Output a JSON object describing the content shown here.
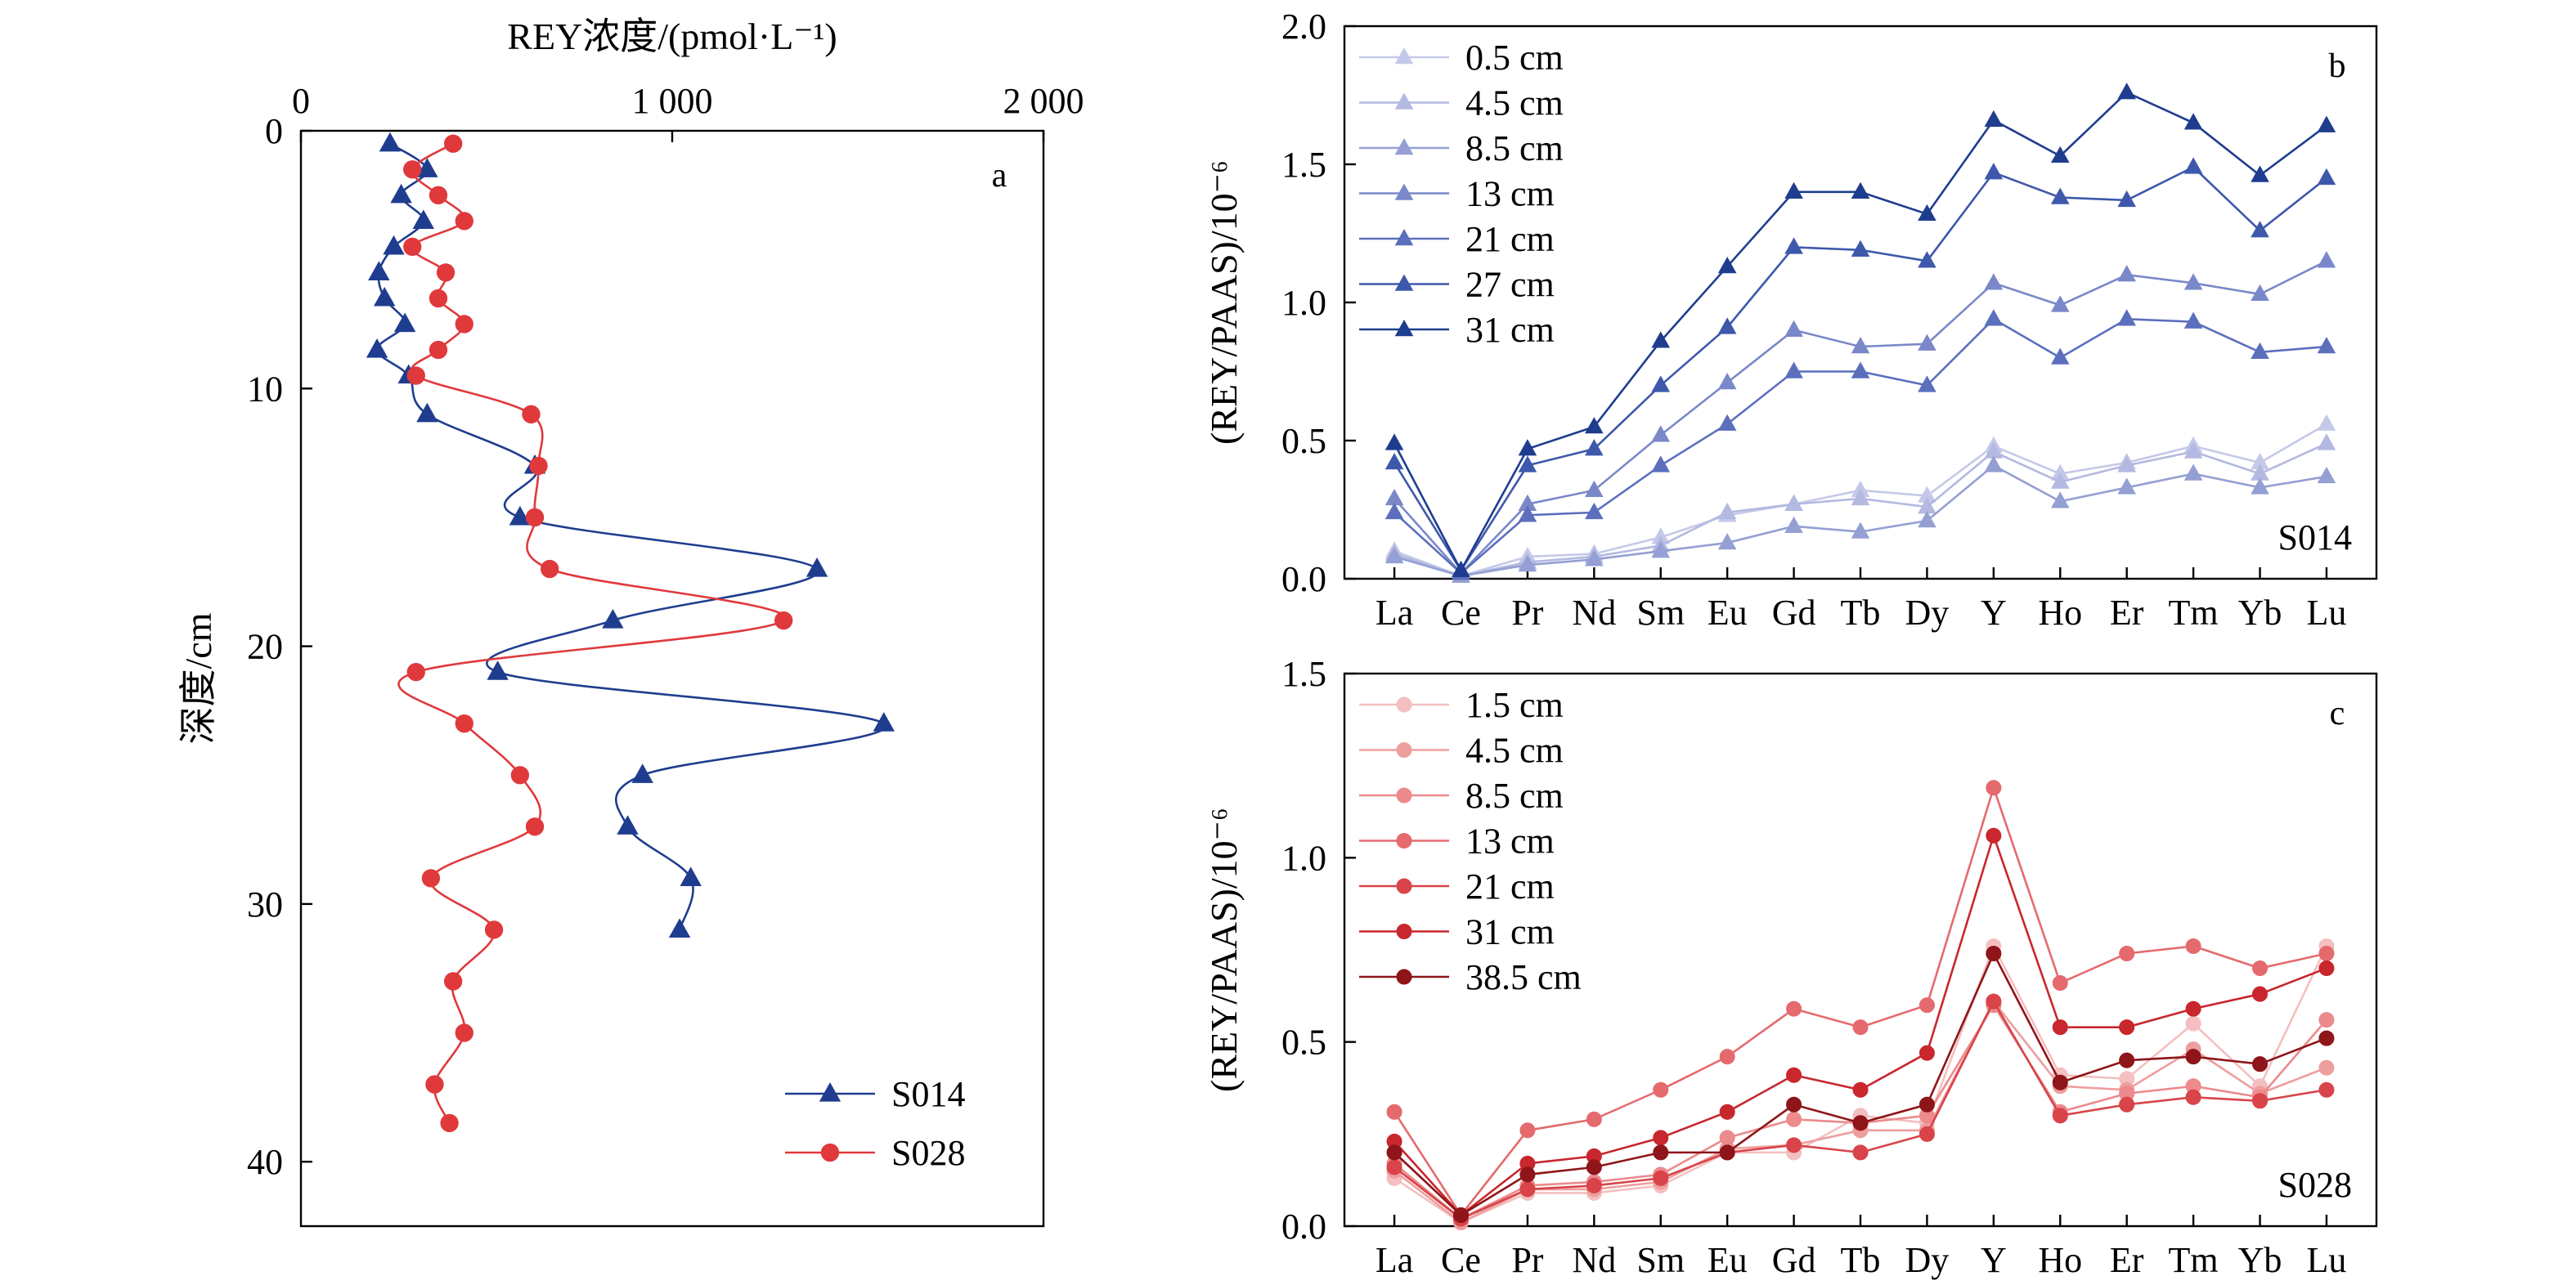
{
  "chart_data": [
    {
      "id": "a",
      "type": "line",
      "panel_label": "a",
      "xlabel": "REY浓度/(pmol·L⁻¹)",
      "ylabel": "深度/cm",
      "xlim": [
        0,
        2000
      ],
      "ylim": [
        0,
        42.5
      ],
      "y_inverted": true,
      "x_axis_position": "top",
      "xticks": [
        0,
        1000,
        2000
      ],
      "xtick_labels": [
        "0",
        "1 000",
        "2 000"
      ],
      "yticks": [
        0,
        10,
        20,
        30,
        40
      ],
      "ytick_labels": [
        "0",
        "10",
        "20",
        "30",
        "40"
      ],
      "legend_position": "bottom-right",
      "series": [
        {
          "name": "S014",
          "color": "#1f3d8f",
          "marker": "triangle",
          "depth": [
            0.5,
            1.5,
            2.5,
            3.5,
            4.5,
            5.5,
            6.5,
            7.5,
            8.5,
            9.5,
            11,
            13,
            15,
            17,
            19,
            21,
            23,
            25,
            27,
            29,
            31
          ],
          "conc": [
            240,
            340,
            270,
            330,
            250,
            210,
            225,
            280,
            205,
            290,
            340,
            630,
            590,
            1390,
            840,
            530,
            1570,
            920,
            880,
            1050,
            1020
          ]
        },
        {
          "name": "S028",
          "color": "#e0393c",
          "marker": "circle",
          "depth": [
            0.5,
            1.5,
            2.5,
            3.5,
            4.5,
            5.5,
            6.5,
            7.5,
            8.5,
            9.5,
            11,
            13,
            15,
            17,
            19,
            21,
            23,
            25,
            27,
            29,
            31,
            33,
            35,
            37,
            38.5
          ],
          "conc": [
            410,
            300,
            370,
            440,
            300,
            390,
            370,
            440,
            370,
            310,
            620,
            640,
            630,
            670,
            1300,
            310,
            440,
            590,
            630,
            350,
            520,
            410,
            440,
            360,
            400
          ]
        }
      ]
    },
    {
      "id": "b",
      "type": "line",
      "panel_label": "b",
      "sample_label": "S014",
      "ylabel": "(REY/PAAS)/10⁻⁶",
      "ylim": [
        0,
        2.0
      ],
      "yticks": [
        0,
        0.5,
        1.0,
        1.5,
        2.0
      ],
      "ytick_labels": [
        "0.0",
        "0.5",
        "1.0",
        "1.5",
        "2.0"
      ],
      "legend_position": "top-left",
      "categories": [
        "La",
        "Ce",
        "Pr",
        "Nd",
        "Sm",
        "Eu",
        "Gd",
        "Tb",
        "Dy",
        "Y",
        "Ho",
        "Er",
        "Tm",
        "Yb",
        "Lu"
      ],
      "series": [
        {
          "name": "0.5 cm",
          "color": "#c5c9e9",
          "marker": "triangle",
          "values": [
            0.1,
            0.01,
            0.08,
            0.09,
            0.15,
            0.23,
            0.27,
            0.32,
            0.3,
            0.48,
            0.38,
            0.42,
            0.48,
            0.42,
            0.56
          ]
        },
        {
          "name": "4.5 cm",
          "color": "#b3b9e1",
          "marker": "triangle",
          "values": [
            0.09,
            0.01,
            0.06,
            0.08,
            0.12,
            0.24,
            0.27,
            0.29,
            0.26,
            0.46,
            0.35,
            0.41,
            0.46,
            0.38,
            0.49
          ]
        },
        {
          "name": "8.5 cm",
          "color": "#949fd3",
          "marker": "triangle",
          "values": [
            0.08,
            0.01,
            0.05,
            0.07,
            0.1,
            0.13,
            0.19,
            0.17,
            0.21,
            0.41,
            0.28,
            0.33,
            0.38,
            0.33,
            0.37
          ]
        },
        {
          "name": "13 cm",
          "color": "#7a88c9",
          "marker": "triangle",
          "values": [
            0.29,
            0.02,
            0.27,
            0.32,
            0.52,
            0.71,
            0.9,
            0.84,
            0.85,
            1.07,
            0.99,
            1.1,
            1.07,
            1.03,
            1.15
          ]
        },
        {
          "name": "21 cm",
          "color": "#5b6fbd",
          "marker": "triangle",
          "values": [
            0.24,
            0.02,
            0.23,
            0.24,
            0.41,
            0.56,
            0.75,
            0.75,
            0.7,
            0.94,
            0.8,
            0.94,
            0.93,
            0.82,
            0.84
          ]
        },
        {
          "name": "27 cm",
          "color": "#3e58ab",
          "marker": "triangle",
          "values": [
            0.42,
            0.03,
            0.41,
            0.47,
            0.7,
            0.91,
            1.2,
            1.19,
            1.15,
            1.47,
            1.38,
            1.37,
            1.49,
            1.26,
            1.45
          ]
        },
        {
          "name": "31 cm",
          "color": "#1f3d8f",
          "marker": "triangle",
          "values": [
            0.49,
            0.03,
            0.47,
            0.55,
            0.86,
            1.13,
            1.4,
            1.4,
            1.32,
            1.66,
            1.53,
            1.76,
            1.65,
            1.46,
            1.64
          ]
        }
      ]
    },
    {
      "id": "c",
      "type": "line",
      "panel_label": "c",
      "sample_label": "S028",
      "ylabel": "(REY/PAAS)/10⁻⁶",
      "ylim": [
        0,
        1.5
      ],
      "yticks": [
        0,
        0.5,
        1.0,
        1.5
      ],
      "ytick_labels": [
        "0.0",
        "0.5",
        "1.0",
        "1.5"
      ],
      "legend_position": "top-left",
      "categories": [
        "La",
        "Ce",
        "Pr",
        "Nd",
        "Sm",
        "Eu",
        "Gd",
        "Tb",
        "Dy",
        "Y",
        "Ho",
        "Er",
        "Tm",
        "Yb",
        "Lu"
      ],
      "series": [
        {
          "name": "1.5 cm",
          "color": "#f4bfc0",
          "marker": "circle",
          "values": [
            0.13,
            0.01,
            0.09,
            0.09,
            0.11,
            0.2,
            0.2,
            0.3,
            0.28,
            0.76,
            0.41,
            0.4,
            0.55,
            0.38,
            0.76
          ]
        },
        {
          "name": "4.5 cm",
          "color": "#ee9e9f",
          "marker": "circle",
          "values": [
            0.15,
            0.01,
            0.1,
            0.1,
            0.12,
            0.21,
            0.22,
            0.26,
            0.26,
            0.61,
            0.38,
            0.37,
            0.48,
            0.36,
            0.43
          ]
        },
        {
          "name": "8.5 cm",
          "color": "#ec8a8c",
          "marker": "circle",
          "values": [
            0.17,
            0.02,
            0.11,
            0.12,
            0.14,
            0.24,
            0.29,
            0.28,
            0.3,
            0.6,
            0.31,
            0.36,
            0.38,
            0.35,
            0.56
          ]
        },
        {
          "name": "13 cm",
          "color": "#e56a6e",
          "marker": "circle",
          "values": [
            0.31,
            0.03,
            0.26,
            0.29,
            0.37,
            0.46,
            0.59,
            0.54,
            0.6,
            1.19,
            0.66,
            0.74,
            0.76,
            0.7,
            0.74
          ]
        },
        {
          "name": "21 cm",
          "color": "#d84449",
          "marker": "circle",
          "values": [
            0.16,
            0.02,
            0.1,
            0.11,
            0.13,
            0.2,
            0.22,
            0.2,
            0.25,
            0.61,
            0.3,
            0.33,
            0.35,
            0.34,
            0.37
          ]
        },
        {
          "name": "31 cm",
          "color": "#c8272d",
          "marker": "circle",
          "values": [
            0.23,
            0.03,
            0.17,
            0.19,
            0.24,
            0.31,
            0.41,
            0.37,
            0.47,
            1.06,
            0.54,
            0.54,
            0.59,
            0.63,
            0.7
          ]
        },
        {
          "name": "38.5 cm",
          "color": "#8e1519",
          "marker": "circle",
          "values": [
            0.2,
            0.03,
            0.14,
            0.16,
            0.2,
            0.2,
            0.33,
            0.28,
            0.33,
            0.74,
            0.39,
            0.45,
            0.46,
            0.44,
            0.51
          ]
        }
      ]
    }
  ]
}
